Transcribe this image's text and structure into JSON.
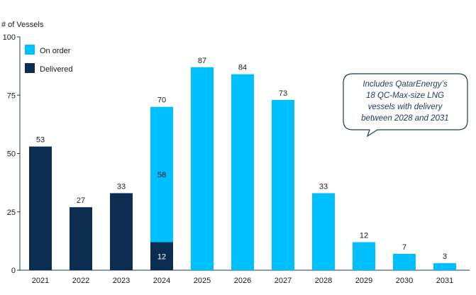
{
  "chart_data": {
    "type": "bar",
    "stacked": true,
    "ylabel": "# of Vessels",
    "ylim": [
      0,
      100
    ],
    "yticks": [
      0,
      25,
      50,
      75,
      100
    ],
    "categories": [
      "2021",
      "2022",
      "2023",
      "2024",
      "2025",
      "2026",
      "2027",
      "2028",
      "2029",
      "2030",
      "2031"
    ],
    "series": [
      {
        "name": "Delivered",
        "color": "#0b2d50",
        "values": [
          53,
          27,
          33,
          12,
          0,
          0,
          0,
          0,
          0,
          0,
          0
        ]
      },
      {
        "name": "On order",
        "color": "#00bfff",
        "values": [
          0,
          0,
          0,
          58,
          87,
          84,
          73,
          33,
          12,
          7,
          3
        ]
      }
    ],
    "totals": [
      53,
      27,
      33,
      70,
      87,
      84,
      73,
      33,
      12,
      7,
      3
    ],
    "segment_labels": {
      "2024": [
        "12",
        "58"
      ]
    },
    "legend": {
      "position": "top-left",
      "items": [
        "On order",
        "Delivered"
      ]
    },
    "annotation": [
      "Includes QatarEnergy’s",
      "18 QC-Max-size LNG",
      "vessels with delivery",
      "between 2028 and 2031"
    ]
  }
}
